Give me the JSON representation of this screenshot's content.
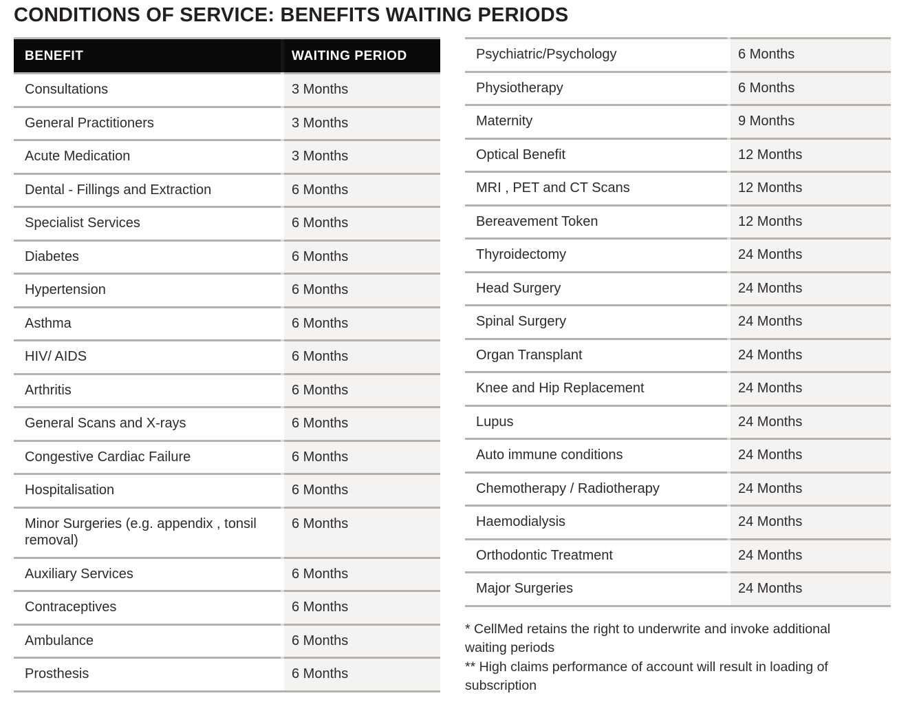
{
  "title": "CONDITIONS OF SERVICE: BENEFITS WAITING PERIODS",
  "tables": {
    "left": {
      "headers": {
        "benefit": "BENEFIT",
        "period": "WAITING PERIOD"
      },
      "rows": [
        {
          "benefit": "Consultations",
          "period": "3 Months"
        },
        {
          "benefit": "General Practitioners",
          "period": "3 Months"
        },
        {
          "benefit": "Acute Medication",
          "period": "3 Months"
        },
        {
          "benefit": "Dental - Fillings and Extraction",
          "period": "6 Months"
        },
        {
          "benefit": "Specialist Services",
          "period": "6 Months"
        },
        {
          "benefit": "Diabetes",
          "period": "6 Months"
        },
        {
          "benefit": "Hypertension",
          "period": "6 Months"
        },
        {
          "benefit": "Asthma",
          "period": "6 Months"
        },
        {
          "benefit": "HIV/ AIDS",
          "period": "6 Months"
        },
        {
          "benefit": "Arthritis",
          "period": "6 Months"
        },
        {
          "benefit": "General Scans and X-rays",
          "period": "6 Months"
        },
        {
          "benefit": "Congestive Cardiac Failure",
          "period": "6 Months"
        },
        {
          "benefit": "Hospitalisation",
          "period": "6 Months"
        },
        {
          "benefit": "Minor Surgeries (e.g. appendix , tonsil removal)",
          "period": "6 Months"
        },
        {
          "benefit": "Auxiliary Services",
          "period": "6 Months"
        },
        {
          "benefit": "Contraceptives",
          "period": "6 Months"
        },
        {
          "benefit": "Ambulance",
          "period": "6 Months"
        },
        {
          "benefit": "Prosthesis",
          "period": "6 Months"
        }
      ]
    },
    "right": {
      "rows": [
        {
          "benefit": "Psychiatric/Psychology",
          "period": "6 Months"
        },
        {
          "benefit": "Physiotherapy",
          "period": "6 Months"
        },
        {
          "benefit": "Maternity",
          "period": "9 Months"
        },
        {
          "benefit": "Optical Benefit",
          "period": "12 Months"
        },
        {
          "benefit": "MRI , PET and CT Scans",
          "period": "12 Months"
        },
        {
          "benefit": "Bereavement Token",
          "period": "12 Months"
        },
        {
          "benefit": "Thyroidectomy",
          "period": "24 Months"
        },
        {
          "benefit": "Head Surgery",
          "period": "24 Months"
        },
        {
          "benefit": "Spinal Surgery",
          "period": "24 Months"
        },
        {
          "benefit": "Organ Transplant",
          "period": "24 Months"
        },
        {
          "benefit": "Knee and Hip Replacement",
          "period": "24 Months"
        },
        {
          "benefit": "Lupus",
          "period": "24 Months"
        },
        {
          "benefit": "Auto immune conditions",
          "period": "24 Months"
        },
        {
          "benefit": "Chemotherapy / Radiotherapy",
          "period": "24 Months"
        },
        {
          "benefit": "Haemodialysis",
          "period": "24 Months"
        },
        {
          "benefit": "Orthodontic Treatment",
          "period": "24 Months"
        },
        {
          "benefit": "Major Surgeries",
          "period": "24 Months"
        }
      ]
    }
  },
  "footnotes": [
    "* CellMed retains the right to underwrite and invoke additional waiting periods",
    "** High claims performance of account will result in loading of subscription"
  ],
  "colors": {
    "header_bg": "#0b0a0a",
    "header_text": "#ffffff",
    "value_cell_bg": "#f5f3f1",
    "separator": "#b5b2ae",
    "text": "#2d2a2b"
  }
}
